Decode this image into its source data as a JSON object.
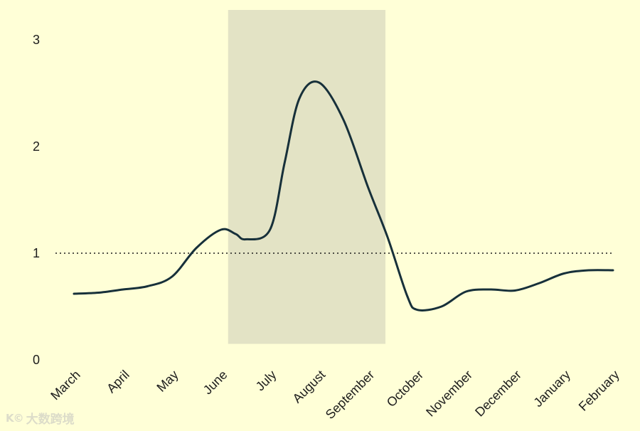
{
  "chart_data": {
    "type": "line",
    "title": "",
    "xlabel": "",
    "ylabel": "",
    "categories": [
      "March",
      "April",
      "May",
      "June",
      "July",
      "August",
      "September",
      "October",
      "November",
      "December",
      "January",
      "February"
    ],
    "y_ticks": [
      "0",
      "1",
      "2",
      "3"
    ],
    "ylim": [
      0,
      3.3
    ],
    "series": [
      {
        "color": "#17303a",
        "x": [
          0,
          0.5,
          1,
          1.5,
          2,
          2.5,
          3,
          3.3,
          3.5,
          4,
          4.3,
          4.6,
          5,
          5.5,
          6,
          6.4,
          6.8,
          7,
          7.5,
          8,
          8.5,
          9,
          9.5,
          10,
          10.5,
          11
        ],
        "values": [
          0.62,
          0.63,
          0.66,
          0.69,
          0.78,
          1.05,
          1.22,
          1.18,
          1.13,
          1.22,
          1.85,
          2.45,
          2.6,
          2.25,
          1.62,
          1.15,
          0.6,
          0.47,
          0.5,
          0.64,
          0.66,
          0.65,
          0.72,
          0.81,
          0.84,
          0.84
        ]
      }
    ],
    "reference_line": {
      "y": 1,
      "style": "dotted",
      "color": "#1c1c1c"
    },
    "highlight_band": {
      "x_start": 3,
      "x_end": 6.4,
      "y_bottom": 0.15,
      "color": "#e3e3c5"
    },
    "grid": false,
    "legend": "none",
    "background": "#ffffd7"
  },
  "watermark": {
    "logo": "K©",
    "text": "大数跨境"
  }
}
